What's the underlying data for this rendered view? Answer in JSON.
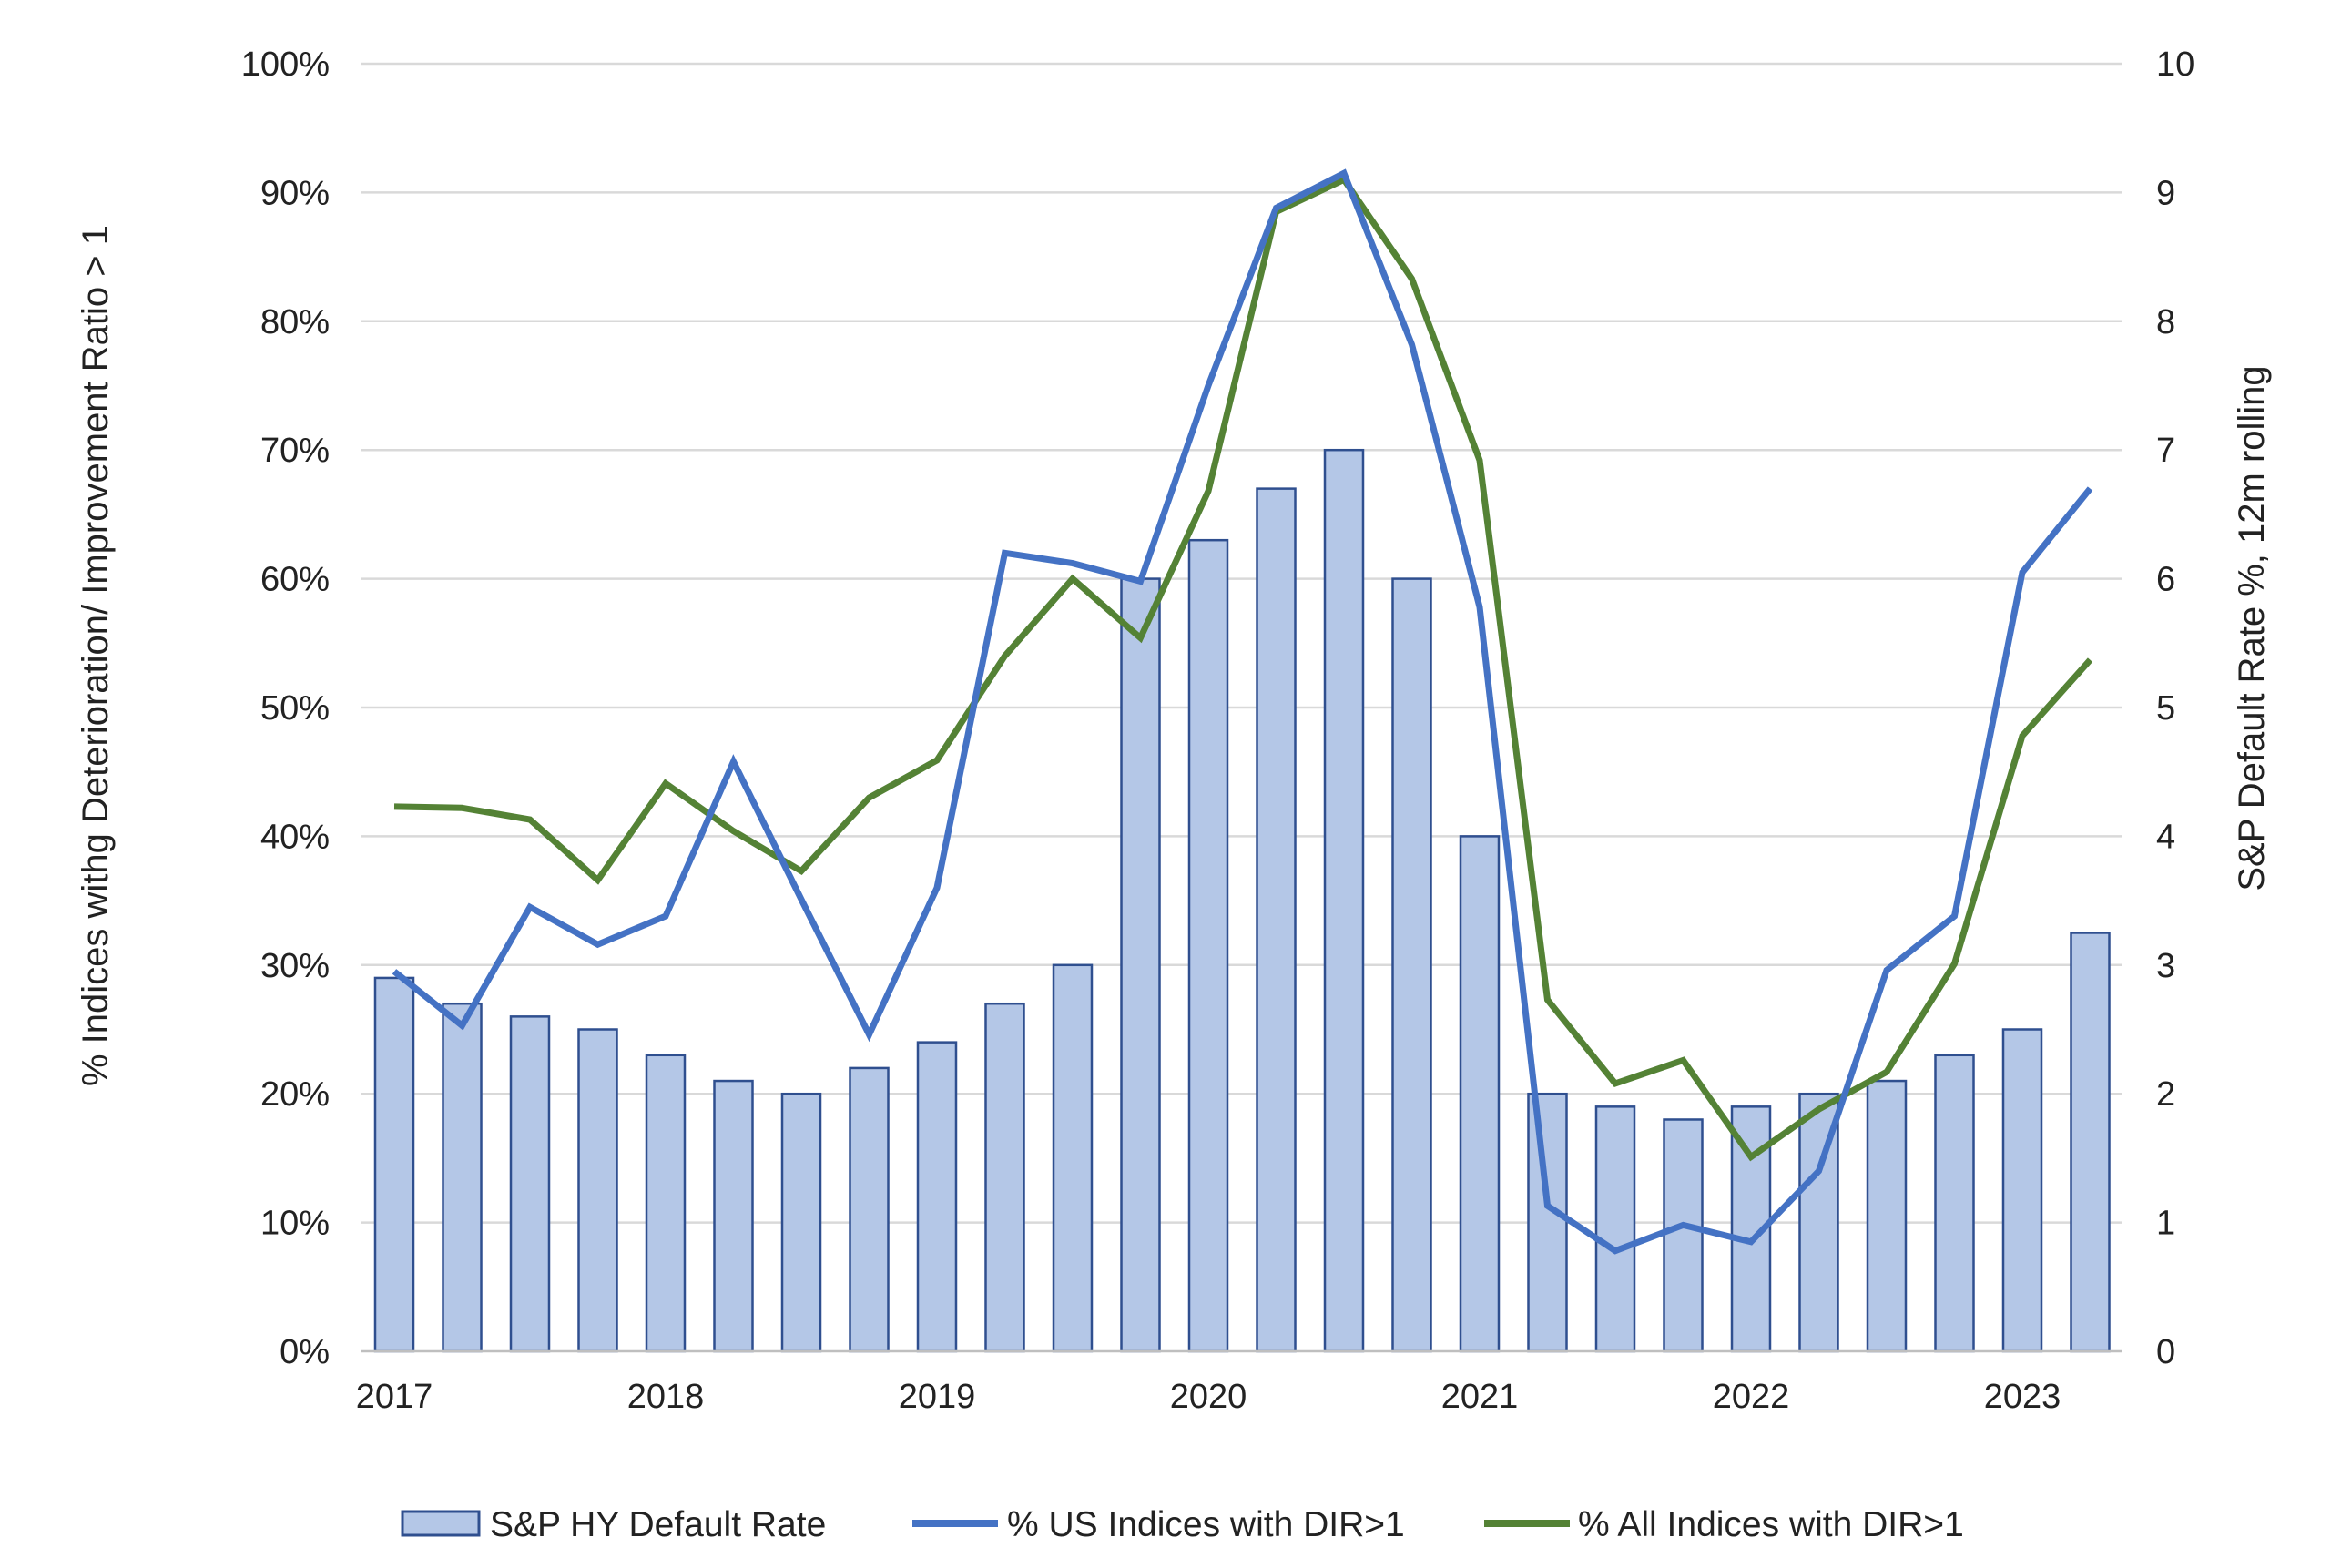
{
  "chart_data": {
    "type": "bar",
    "title": "",
    "x_tick_labels": [
      "2017",
      "2018",
      "2019",
      "2020",
      "2021",
      "2022",
      "2023"
    ],
    "x": [
      "2017-Q1",
      "2017-Q2",
      "2017-Q3",
      "2017-Q4",
      "2018-Q1",
      "2018-Q2",
      "2018-Q3",
      "2018-Q4",
      "2019-Q1",
      "2019-Q2",
      "2019-Q3",
      "2019-Q4",
      "2020-Q1",
      "2020-Q2",
      "2020-Q3",
      "2020-Q4",
      "2021-Q1",
      "2021-Q2",
      "2021-Q3",
      "2021-Q4",
      "2022-Q1",
      "2022-Q2",
      "2022-Q3",
      "2022-Q4",
      "2023-Q1",
      "2023-Q2"
    ],
    "y_left": {
      "label": "% Indices withg Deterioration/ Improvement Ratio > 1",
      "range": [
        0,
        100
      ],
      "ticks": [
        "0%",
        "10%",
        "20%",
        "30%",
        "40%",
        "50%",
        "60%",
        "70%",
        "80%",
        "90%",
        "100%"
      ]
    },
    "y_right": {
      "label": "S&P Default Rate %, 12m rolling",
      "range": [
        0,
        10
      ],
      "ticks": [
        "0",
        "1",
        "2",
        "3",
        "4",
        "5",
        "6",
        "7",
        "8",
        "9",
        "10"
      ]
    },
    "grid": true,
    "legend_position": "bottom",
    "series": [
      {
        "name": "S&P HY Default Rate",
        "type": "bar",
        "axis": "right",
        "color": "#b4c7e7",
        "edge_color": "#2f4f8f",
        "values": [
          2.9,
          2.7,
          2.6,
          2.5,
          2.3,
          2.1,
          2.0,
          2.2,
          2.4,
          2.7,
          3.0,
          6.0,
          6.3,
          6.7,
          7.0,
          6.0,
          4.0,
          2.0,
          1.9,
          1.8,
          1.9,
          2.0,
          2.1,
          2.3,
          2.5,
          3.25
        ]
      },
      {
        "name": "% US Indices with DIR>1",
        "type": "line",
        "axis": "left",
        "color": "#4472c4",
        "values": [
          29.5,
          25.3,
          34.5,
          31.6,
          33.8,
          45.8,
          35.1,
          24.6,
          36.0,
          62.0,
          61.2,
          59.8,
          75.0,
          88.8,
          91.5,
          78.2,
          57.8,
          11.3,
          7.8,
          9.8,
          8.5,
          14.0,
          29.6,
          33.8,
          60.5,
          67.0
        ]
      },
      {
        "name": "% All Indices with DIR>1",
        "type": "line",
        "axis": "left",
        "color": "#548235",
        "values": [
          42.3,
          42.2,
          41.3,
          36.6,
          44.1,
          40.4,
          37.3,
          43.0,
          45.9,
          54.0,
          60.0,
          55.4,
          66.8,
          88.5,
          91.0,
          83.3,
          69.2,
          27.3,
          20.8,
          22.6,
          15.1,
          18.8,
          21.7,
          30.1,
          47.8,
          53.7
        ]
      }
    ]
  }
}
